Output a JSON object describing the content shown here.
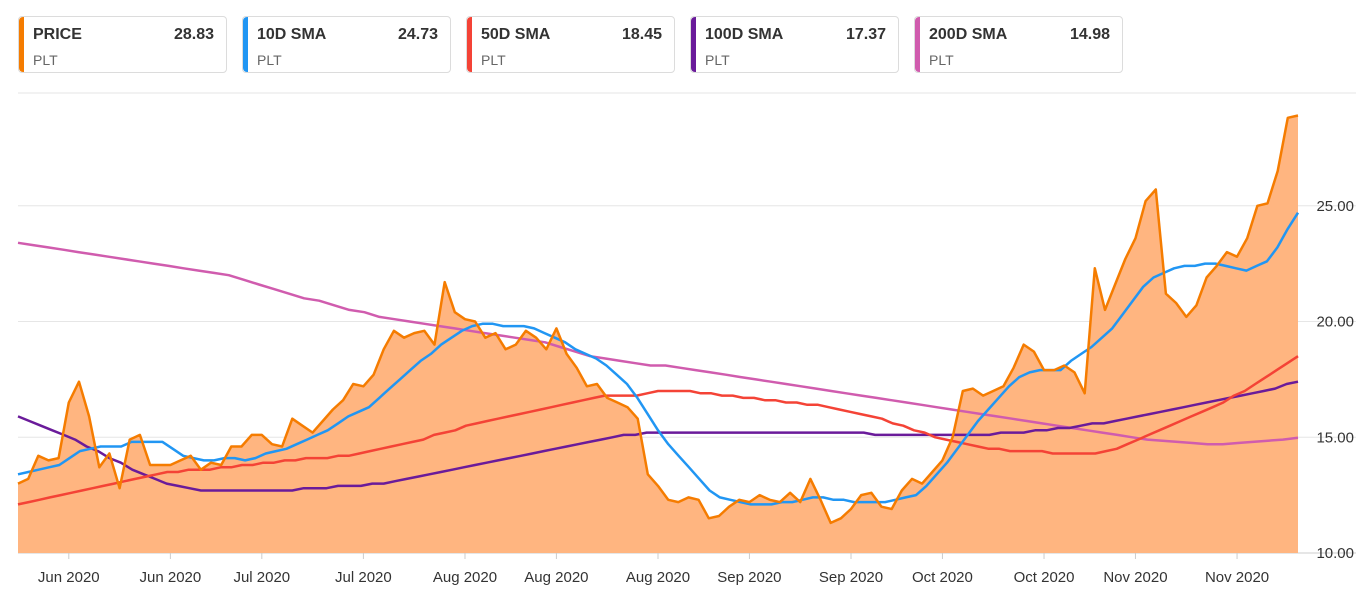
{
  "legend": [
    {
      "name": "PRICE",
      "value": "28.83",
      "symbol": "PLT",
      "color": "#f57c00"
    },
    {
      "name": "10D SMA",
      "value": "24.73",
      "symbol": "PLT",
      "color": "#2196f3"
    },
    {
      "name": "50D SMA",
      "value": "18.45",
      "symbol": "PLT",
      "color": "#f44336"
    },
    {
      "name": "100D SMA",
      "value": "17.37",
      "symbol": "PLT",
      "color": "#6a1b9a"
    },
    {
      "name": "200D SMA",
      "value": "14.98",
      "symbol": "PLT",
      "color": "#d05cae"
    }
  ],
  "chart_data": {
    "type": "line",
    "title": "",
    "ylim": [
      10,
      30
    ],
    "y_ticks": [
      "10.00",
      "15.00",
      "20.00",
      "25.00"
    ],
    "y_tick_values": [
      10,
      15,
      20,
      25
    ],
    "x_ticks": [
      "Jun 2020",
      "Jun 2020",
      "Jul 2020",
      "Jul 2020",
      "Aug 2020",
      "Aug 2020",
      "Aug 2020",
      "Sep 2020",
      "Sep 2020",
      "Oct 2020",
      "Oct 2020",
      "Nov 2020",
      "Nov 2020"
    ],
    "x_tick_index": [
      5,
      15,
      24,
      34,
      44,
      53,
      63,
      72,
      82,
      91,
      101,
      110,
      120
    ],
    "series": [
      {
        "name": "PRICE",
        "color": "#f57c00",
        "fill": "#ffb580",
        "values": [
          13,
          13.2,
          14.2,
          14,
          14.1,
          16.5,
          17.4,
          15.9,
          13.7,
          14.3,
          12.8,
          14.9,
          15.1,
          13.8,
          13.8,
          13.8,
          14,
          14.2,
          13.6,
          13.9,
          13.8,
          14.6,
          14.6,
          15.1,
          15.1,
          14.7,
          14.6,
          15.8,
          15.5,
          15.2,
          15.7,
          16.2,
          16.6,
          17.3,
          17.2,
          17.7,
          18.8,
          19.6,
          19.3,
          19.5,
          19.6,
          19,
          21.7,
          20.4,
          20.1,
          20,
          19.3,
          19.5,
          18.8,
          19,
          19.6,
          19.3,
          18.8,
          19.7,
          18.6,
          18,
          17.2,
          17.3,
          16.7,
          16.5,
          16.3,
          15.8,
          13.4,
          12.9,
          12.3,
          12.2,
          12.4,
          12.3,
          11.5,
          11.6,
          12,
          12.3,
          12.2,
          12.5,
          12.3,
          12.2,
          12.6,
          12.2,
          13.2,
          12.3,
          11.3,
          11.5,
          11.9,
          12.5,
          12.6,
          12,
          11.9,
          12.7,
          13.2,
          13,
          13.5,
          14,
          15,
          17,
          17.1,
          16.8,
          17,
          17.2,
          18,
          19,
          18.7,
          17.9,
          17.9,
          18.1,
          17.8,
          16.9,
          22.3,
          20.5,
          21.6,
          22.7,
          23.6,
          25.2,
          25.7,
          21.2,
          20.8,
          20.2,
          20.7,
          21.9,
          22.4,
          23,
          22.8,
          23.6,
          25,
          25.1,
          26.5,
          28.8,
          28.9
        ]
      },
      {
        "name": "10D SMA",
        "color": "#2196f3",
        "values": [
          13.4,
          13.5,
          13.6,
          13.7,
          13.8,
          14.1,
          14.4,
          14.5,
          14.6,
          14.6,
          14.6,
          14.8,
          14.8,
          14.8,
          14.8,
          14.5,
          14.2,
          14.1,
          14,
          14,
          14.1,
          14.1,
          14,
          14.1,
          14.3,
          14.4,
          14.5,
          14.7,
          14.9,
          15.1,
          15.3,
          15.6,
          15.9,
          16.1,
          16.3,
          16.7,
          17.1,
          17.5,
          17.9,
          18.3,
          18.6,
          19,
          19.3,
          19.6,
          19.8,
          19.9,
          19.9,
          19.8,
          19.8,
          19.8,
          19.7,
          19.5,
          19.3,
          19.1,
          18.8,
          18.6,
          18.4,
          18.1,
          17.7,
          17.3,
          16.7,
          16,
          15.3,
          14.7,
          14.2,
          13.7,
          13.2,
          12.7,
          12.4,
          12.3,
          12.2,
          12.1,
          12.1,
          12.1,
          12.2,
          12.2,
          12.3,
          12.4,
          12.4,
          12.3,
          12.3,
          12.2,
          12.2,
          12.2,
          12.2,
          12.3,
          12.4,
          12.5,
          12.9,
          13.4,
          13.9,
          14.5,
          15.1,
          15.7,
          16.2,
          16.7,
          17.2,
          17.6,
          17.8,
          17.9,
          17.9,
          17.9,
          18.3,
          18.6,
          18.9,
          19.3,
          19.7,
          20.3,
          20.9,
          21.5,
          21.9,
          22.1,
          22.3,
          22.4,
          22.4,
          22.5,
          22.5,
          22.4,
          22.3,
          22.2,
          22.4,
          22.6,
          23.2,
          24,
          24.7
        ]
      },
      {
        "name": "50D SMA",
        "color": "#f44336",
        "values": [
          12.1,
          12.2,
          12.3,
          12.4,
          12.5,
          12.6,
          12.7,
          12.8,
          12.9,
          13,
          13.1,
          13.2,
          13.3,
          13.4,
          13.5,
          13.5,
          13.6,
          13.6,
          13.6,
          13.7,
          13.7,
          13.8,
          13.8,
          13.9,
          13.9,
          14,
          14,
          14.1,
          14.1,
          14.1,
          14.2,
          14.2,
          14.3,
          14.4,
          14.5,
          14.6,
          14.7,
          14.8,
          14.9,
          15.1,
          15.2,
          15.3,
          15.5,
          15.6,
          15.7,
          15.8,
          15.9,
          16,
          16.1,
          16.2,
          16.3,
          16.4,
          16.5,
          16.6,
          16.7,
          16.8,
          16.8,
          16.8,
          16.8,
          16.9,
          17,
          17,
          17,
          17,
          16.9,
          16.9,
          16.8,
          16.8,
          16.7,
          16.7,
          16.6,
          16.6,
          16.5,
          16.5,
          16.4,
          16.4,
          16.3,
          16.2,
          16.1,
          16,
          15.9,
          15.8,
          15.6,
          15.5,
          15.3,
          15.2,
          15,
          14.9,
          14.8,
          14.7,
          14.6,
          14.5,
          14.5,
          14.4,
          14.4,
          14.4,
          14.4,
          14.3,
          14.3,
          14.3,
          14.3,
          14.3,
          14.4,
          14.5,
          14.7,
          14.9,
          15.1,
          15.3,
          15.5,
          15.7,
          15.9,
          16.1,
          16.3,
          16.5,
          16.8,
          17,
          17.3,
          17.6,
          17.9,
          18.2,
          18.5
        ]
      },
      {
        "name": "100D SMA",
        "color": "#6a1b9a",
        "values": [
          15.9,
          15.7,
          15.5,
          15.3,
          15.1,
          14.9,
          14.6,
          14.4,
          14.1,
          13.9,
          13.6,
          13.4,
          13.2,
          13,
          12.9,
          12.8,
          12.7,
          12.7,
          12.7,
          12.7,
          12.7,
          12.7,
          12.7,
          12.7,
          12.7,
          12.8,
          12.8,
          12.8,
          12.9,
          12.9,
          12.9,
          13,
          13,
          13.1,
          13.2,
          13.3,
          13.4,
          13.5,
          13.6,
          13.7,
          13.8,
          13.9,
          14,
          14.1,
          14.2,
          14.3,
          14.4,
          14.5,
          14.6,
          14.7,
          14.8,
          14.9,
          15,
          15.1,
          15.1,
          15.2,
          15.2,
          15.2,
          15.2,
          15.2,
          15.2,
          15.2,
          15.2,
          15.2,
          15.2,
          15.2,
          15.2,
          15.2,
          15.2,
          15.2,
          15.2,
          15.2,
          15.2,
          15.2,
          15.2,
          15.1,
          15.1,
          15.1,
          15.1,
          15.1,
          15.1,
          15.1,
          15.1,
          15.1,
          15.1,
          15.1,
          15.2,
          15.2,
          15.2,
          15.3,
          15.3,
          15.4,
          15.4,
          15.5,
          15.6,
          15.6,
          15.7,
          15.8,
          15.9,
          16,
          16.1,
          16.2,
          16.3,
          16.4,
          16.5,
          16.6,
          16.7,
          16.8,
          16.9,
          17,
          17.1,
          17.3,
          17.4
        ]
      },
      {
        "name": "200D SMA",
        "color": "#d05cae",
        "values": [
          23.4,
          23.3,
          23.2,
          23.1,
          23,
          22.9,
          22.8,
          22.7,
          22.6,
          22.5,
          22.4,
          22.3,
          22.2,
          22.1,
          22,
          21.8,
          21.6,
          21.4,
          21.2,
          21,
          20.9,
          20.7,
          20.5,
          20.4,
          20.2,
          20.1,
          20,
          19.9,
          19.8,
          19.7,
          19.6,
          19.5,
          19.4,
          19.3,
          19.2,
          19.1,
          18.9,
          18.7,
          18.5,
          18.4,
          18.3,
          18.2,
          18.1,
          18.1,
          18,
          17.9,
          17.8,
          17.7,
          17.6,
          17.5,
          17.4,
          17.3,
          17.2,
          17.1,
          17,
          16.9,
          16.8,
          16.7,
          16.6,
          16.5,
          16.4,
          16.3,
          16.2,
          16.1,
          16,
          15.9,
          15.8,
          15.7,
          15.6,
          15.5,
          15.4,
          15.3,
          15.2,
          15.1,
          15,
          14.9,
          14.85,
          14.8,
          14.75,
          14.7,
          14.7,
          14.75,
          14.8,
          14.85,
          14.9,
          14.98
        ]
      }
    ]
  }
}
